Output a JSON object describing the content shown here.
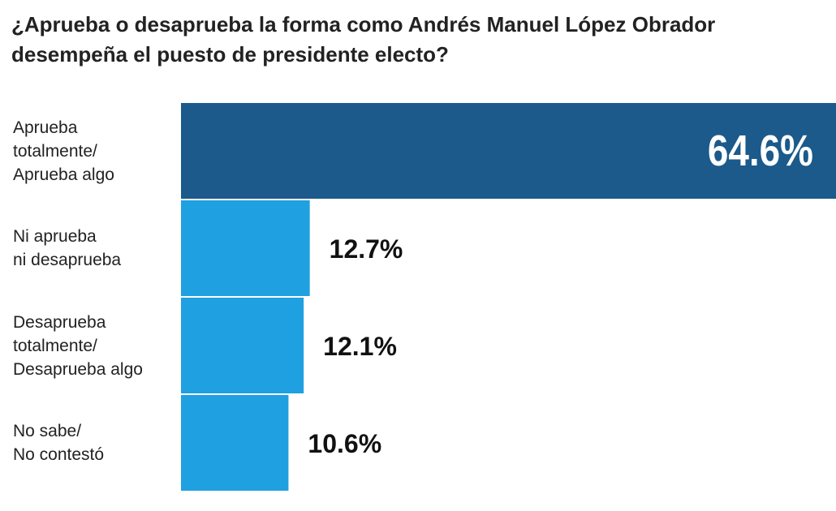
{
  "chart_data": {
    "type": "hbar",
    "title": "¿Aprueba o desaprueba la forma como Andrés Manuel López Obrador\ndesempeña el puesto de presidente electo?",
    "categories": [
      "Aprueba\ntotalmente/\nAprueba algo",
      "Ni aprueba\nni desaprueba",
      "Desaprueba\ntotalmente/\nDesaprueba algo",
      "No sabe/\nNo contestó"
    ],
    "values": [
      64.6,
      12.7,
      12.1,
      10.6
    ],
    "value_labels": [
      "64.6%",
      "12.7%",
      "12.1%",
      "10.6%"
    ],
    "colors": [
      "#1b5a8b",
      "#1fa0e1",
      "#1fa0e1",
      "#1fa0e1"
    ]
  }
}
